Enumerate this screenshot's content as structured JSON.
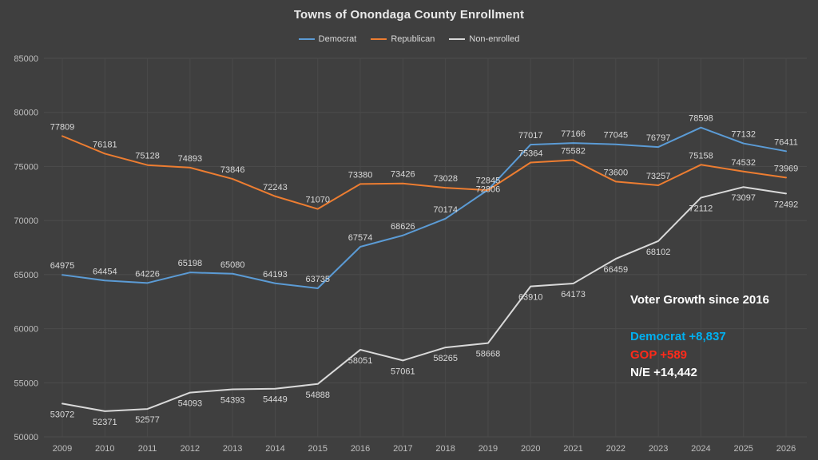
{
  "annotation": {
    "heading": "Voter Growth since 2016",
    "lines": [
      {
        "text": "Democrat +8,837",
        "color": "#00b0f0"
      },
      {
        "text": "GOP +589",
        "color": "#ff2a1a"
      },
      {
        "text": "N/E +14,442",
        "color": "#ffffff"
      }
    ]
  },
  "colors": {
    "background": "#3f3f3f",
    "gridline": "#4d4d4d",
    "tick_text": "#bfbfbf",
    "data_label": "#d9d9d9"
  },
  "chart_data": {
    "type": "line",
    "title": "Towns of Onondaga County Enrollment",
    "xlabel": "",
    "ylabel": "",
    "x": [
      2009,
      2010,
      2011,
      2012,
      2013,
      2014,
      2015,
      2016,
      2017,
      2018,
      2019,
      2020,
      2021,
      2022,
      2023,
      2024,
      2025,
      2026
    ],
    "series": [
      {
        "name": "Democrat",
        "color": "#5b9bd5",
        "label_position": "above",
        "values": [
          64975,
          64454,
          64226,
          65198,
          65080,
          64193,
          63735,
          67574,
          68626,
          70174,
          72845,
          77017,
          77166,
          77045,
          76797,
          78598,
          77132,
          76411
        ]
      },
      {
        "name": "Republican",
        "color": "#ed7d31",
        "label_position": "above",
        "values": [
          77809,
          76181,
          75128,
          74893,
          73846,
          72243,
          71070,
          73380,
          73426,
          73028,
          72806,
          75364,
          75582,
          73600,
          73257,
          75158,
          74532,
          73969
        ]
      },
      {
        "name": "Non-enrolled",
        "color": "#d9d9d9",
        "label_position": "below",
        "values": [
          53072,
          52371,
          52577,
          54093,
          54393,
          54449,
          54888,
          58051,
          57061,
          58265,
          58668,
          63910,
          64173,
          66459,
          68102,
          72112,
          73097,
          72492
        ]
      }
    ],
    "ylim": [
      50000,
      85000
    ],
    "ytick_step": 5000,
    "grid": true,
    "legend_position": "top"
  }
}
